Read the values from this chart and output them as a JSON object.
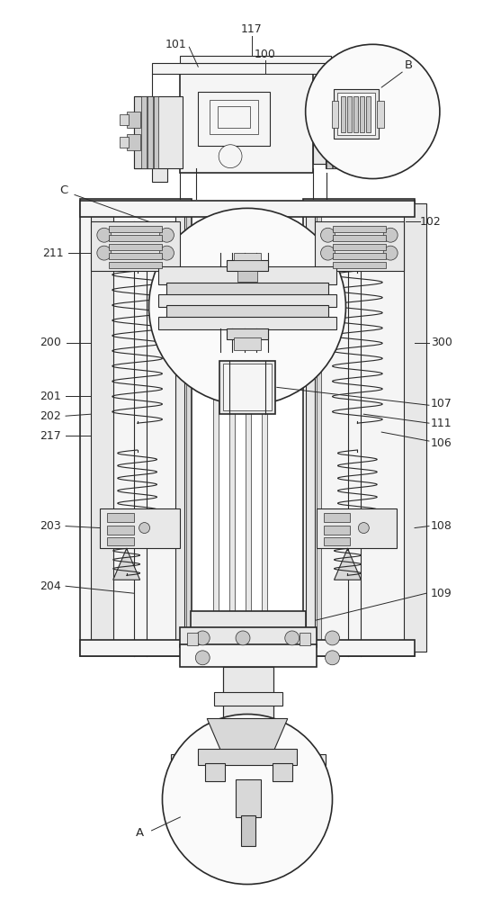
{
  "bg_color": "#ffffff",
  "lc": "#2a2a2a",
  "fc_light": "#f5f5f5",
  "fc_mid": "#e8e8e8",
  "fc_dark": "#d8d8d8",
  "fc_darker": "#c8c8c8",
  "figw": 5.47,
  "figh": 10.0,
  "dpi": 100,
  "xlim": [
    0,
    547
  ],
  "ylim": [
    0,
    1000
  ]
}
